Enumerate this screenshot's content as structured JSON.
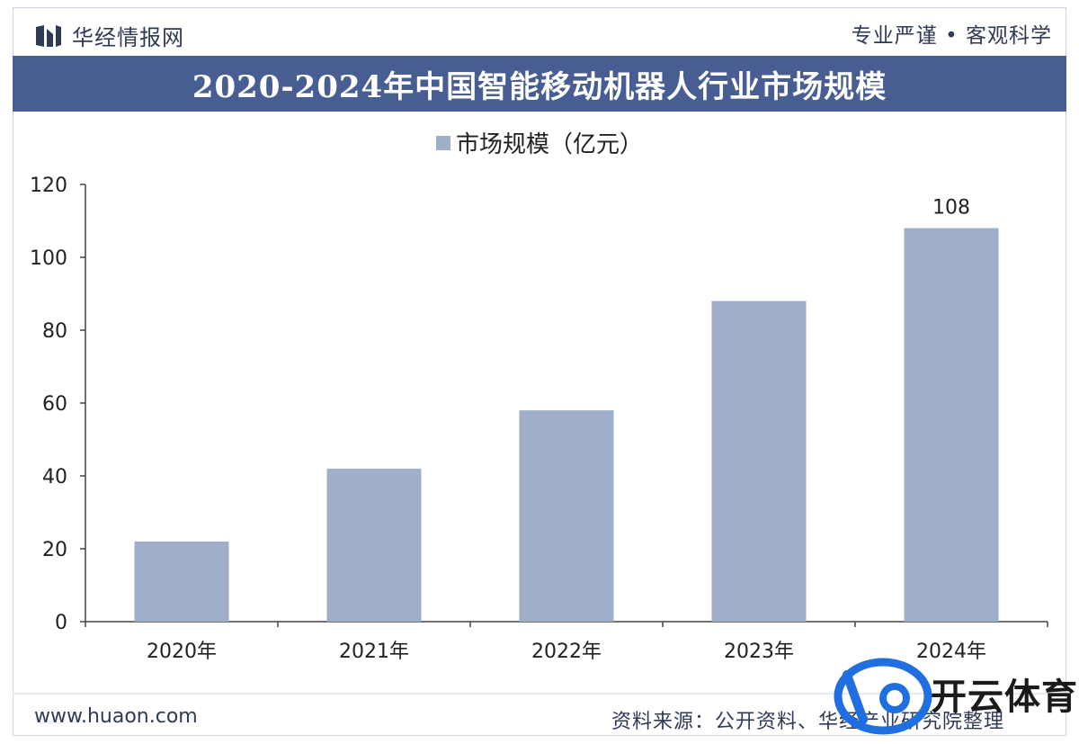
{
  "header": {
    "brand": "华经情报网",
    "slogan": "专业严谨 • 客观科学"
  },
  "footer": {
    "website": "www.huaon.com",
    "source": "资料来源：公开资料、华经产业研究院整理"
  },
  "badge": {
    "text": "开云体育"
  },
  "colors": {
    "title_bar": "#485e92",
    "bar": "#9fafc9",
    "text": "#2f3a56"
  },
  "chart_data": {
    "type": "bar",
    "title": "2020-2024年中国智能移动机器人行业市场规模",
    "categories": [
      "2020年",
      "2021年",
      "2022年",
      "2023年",
      "2024年"
    ],
    "series": [
      {
        "name": "市场规模（亿元）",
        "values": [
          22,
          42,
          58,
          88,
          108
        ]
      }
    ],
    "data_labels": {
      "4": "108"
    },
    "ylim": [
      0,
      120
    ],
    "yticks": [
      0,
      20,
      40,
      60,
      80,
      100,
      120
    ],
    "grid": false,
    "legend": "top"
  }
}
